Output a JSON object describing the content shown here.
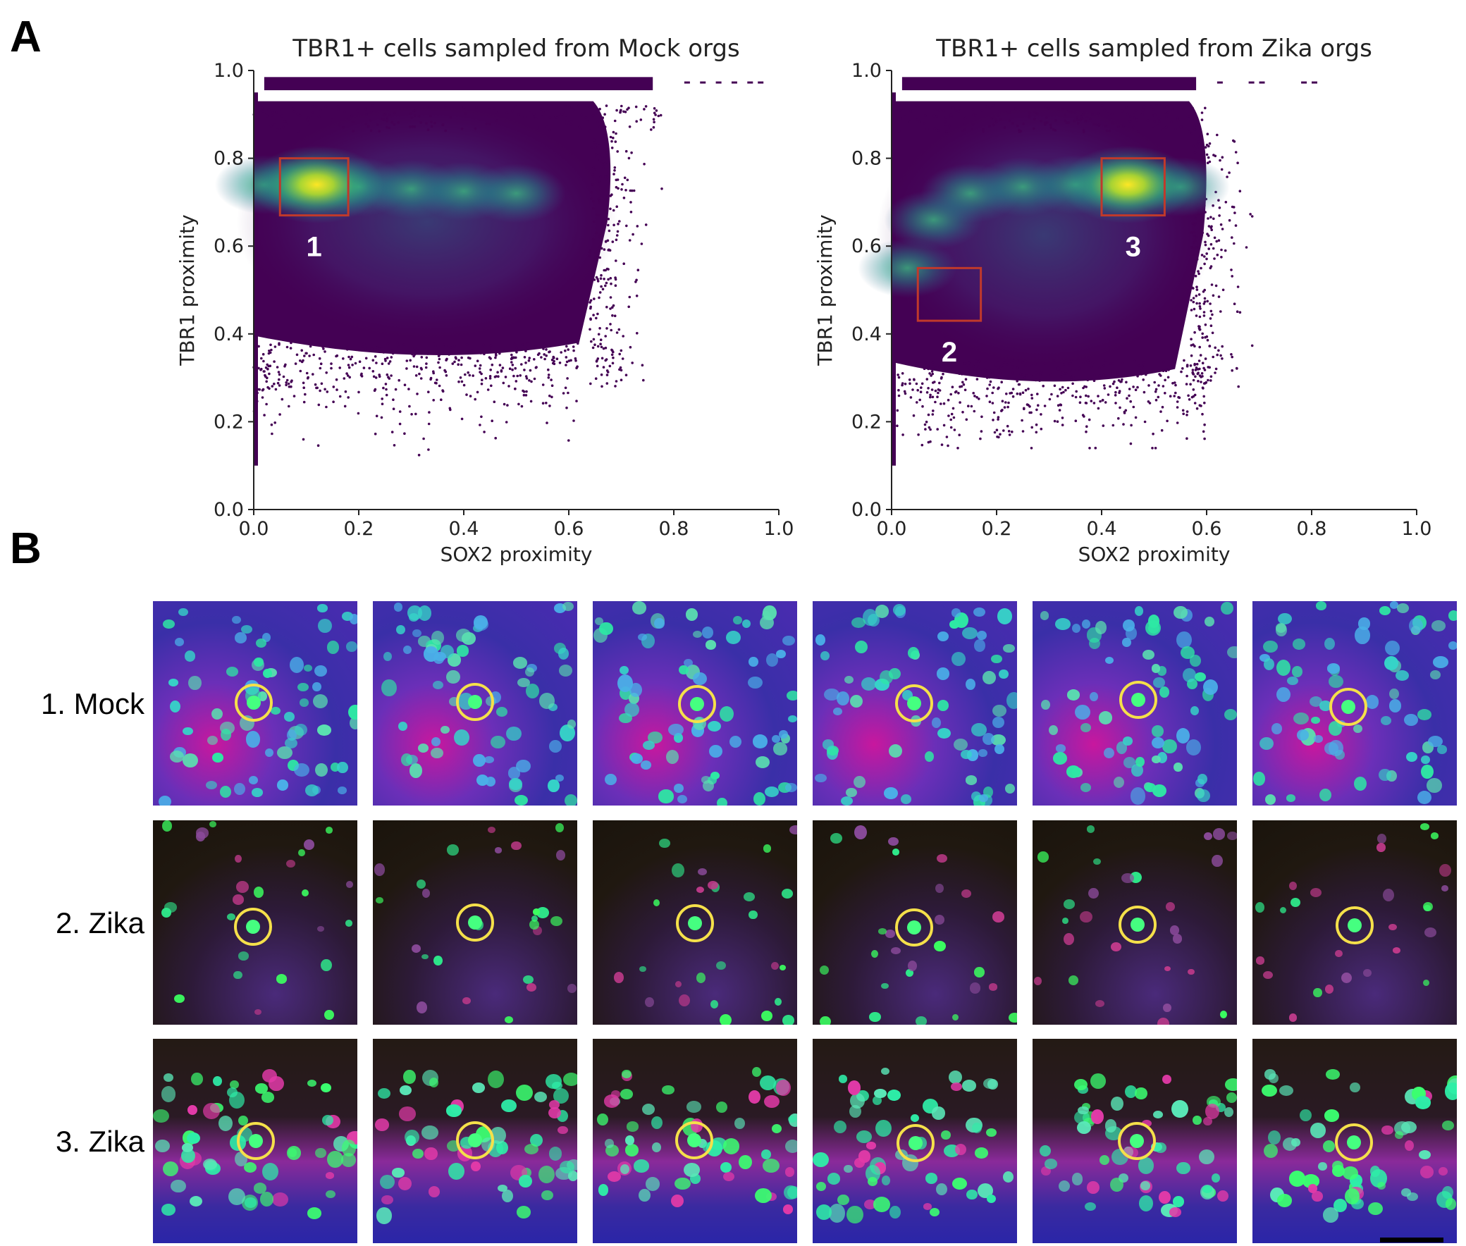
{
  "panel_labels": {
    "a": "A",
    "b": "B"
  },
  "chart_data": [
    {
      "type": "scatter",
      "title": "TBR1+ cells sampled from Mock orgs",
      "xlabel": "SOX2 proximity",
      "ylabel": "TBR1 proximity",
      "xlim": [
        0.0,
        1.0
      ],
      "ylim": [
        0.0,
        1.0
      ],
      "xticks": [
        "0.0",
        "0.2",
        "0.4",
        "0.6",
        "0.8",
        "1.0"
      ],
      "yticks": [
        "0.0",
        "0.2",
        "0.4",
        "0.6",
        "0.8",
        "1.0"
      ],
      "colormap": "viridis",
      "density_peak": {
        "x": 0.12,
        "y": 0.74
      },
      "ridge": [
        [
          0.02,
          0.74
        ],
        [
          0.1,
          0.74
        ],
        [
          0.2,
          0.735
        ],
        [
          0.3,
          0.73
        ],
        [
          0.4,
          0.725
        ],
        [
          0.5,
          0.72
        ]
      ],
      "point_extent": {
        "x": [
          0.0,
          0.96
        ],
        "y": [
          0.06,
          0.98
        ]
      },
      "boxes": [
        {
          "label": "1",
          "x": [
            0.05,
            0.18
          ],
          "y": [
            0.67,
            0.8
          ]
        }
      ]
    },
    {
      "type": "scatter",
      "title": "TBR1+ cells sampled from Zika orgs",
      "xlabel": "SOX2 proximity",
      "ylabel": "TBR1 proximity",
      "xlim": [
        0.0,
        1.0
      ],
      "ylim": [
        0.0,
        1.0
      ],
      "xticks": [
        "0.0",
        "0.2",
        "0.4",
        "0.6",
        "0.8",
        "1.0"
      ],
      "yticks": [
        "0.0",
        "0.2",
        "0.4",
        "0.6",
        "0.8",
        "1.0"
      ],
      "colormap": "viridis",
      "density_peak": {
        "x": 0.45,
        "y": 0.74
      },
      "ridge": [
        [
          0.03,
          0.55
        ],
        [
          0.08,
          0.66
        ],
        [
          0.15,
          0.72
        ],
        [
          0.25,
          0.735
        ],
        [
          0.35,
          0.74
        ],
        [
          0.45,
          0.74
        ],
        [
          0.55,
          0.735
        ]
      ],
      "point_extent": {
        "x": [
          0.0,
          0.8
        ],
        "y": [
          0.14,
          0.98
        ]
      },
      "boxes": [
        {
          "label": "2",
          "x": [
            0.05,
            0.17
          ],
          "y": [
            0.43,
            0.55
          ]
        },
        {
          "label": "3",
          "x": [
            0.4,
            0.52
          ],
          "y": [
            0.67,
            0.8
          ]
        }
      ]
    }
  ],
  "rows": [
    {
      "label": "1. Mock",
      "style": "mock"
    },
    {
      "label": "2. Zika",
      "style": "zika2"
    },
    {
      "label": "3. Zika",
      "style": "zika3"
    }
  ],
  "colors": {
    "box": "#c0392b",
    "ring": "#f5e04a",
    "density_low": "#440154",
    "density_high": "#fde725"
  }
}
